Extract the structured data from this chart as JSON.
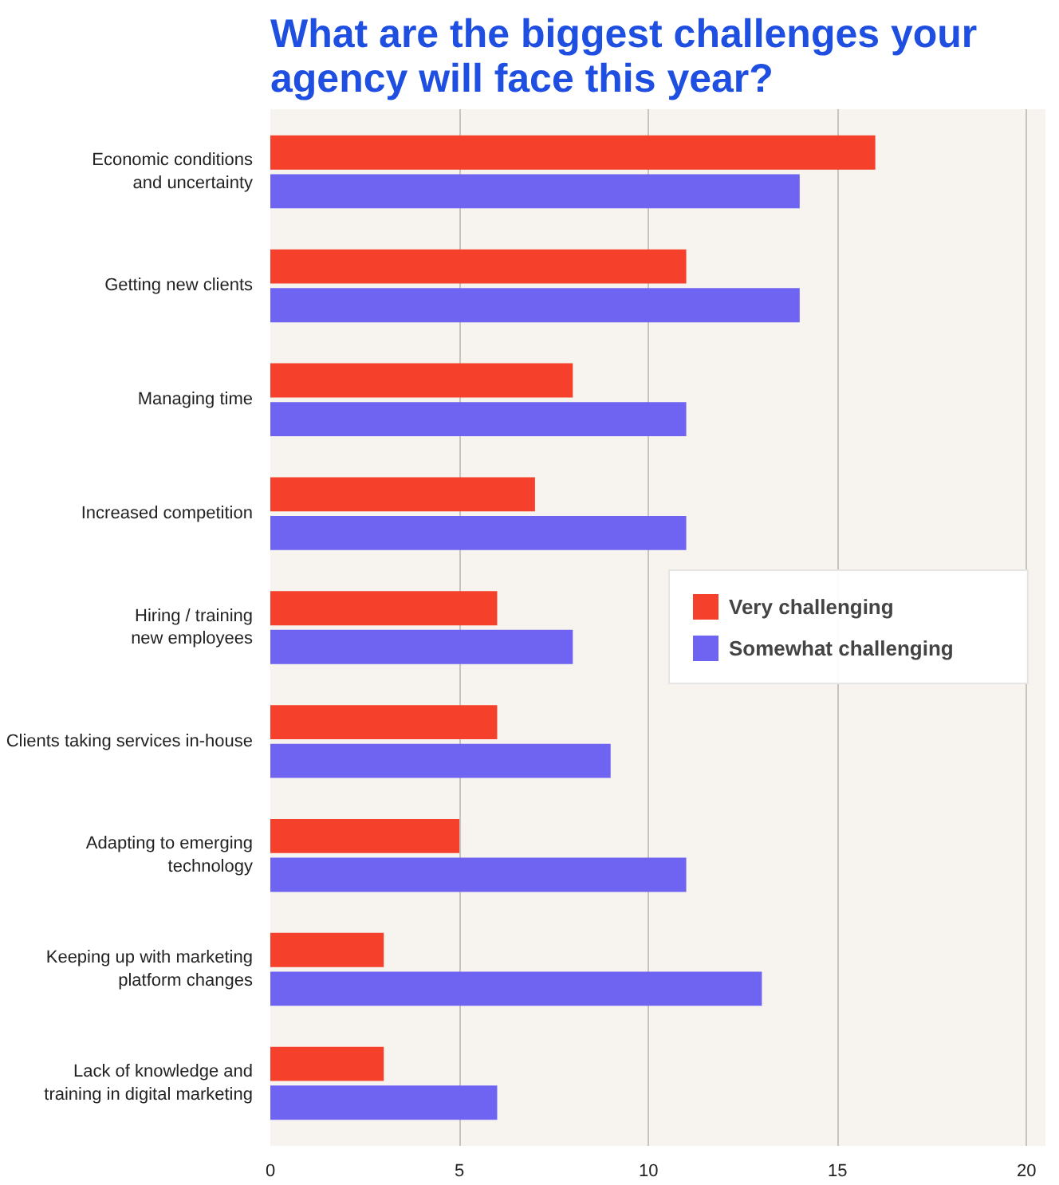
{
  "chart_data": {
    "type": "bar",
    "orientation": "horizontal",
    "title": "What are the biggest challenges your\nagency will face this year?",
    "categories": [
      "Economic conditions\nand uncertainty",
      "Getting new clients",
      "Managing time",
      "Increased competition",
      "Hiring / training\nnew employees",
      "Clients taking services in-house",
      "Adapting to emerging\ntechnology",
      "Keeping up with marketing\nplatform changes",
      "Lack of knowledge and\ntraining in digital marketing"
    ],
    "series": [
      {
        "name": "Very challenging",
        "color": "#f5402c",
        "values": [
          16,
          11,
          8,
          7,
          6,
          6,
          5,
          3,
          3
        ]
      },
      {
        "name": "Somewhat challenging",
        "color": "#6f63f2",
        "values": [
          14,
          14,
          11,
          11,
          8,
          9,
          11,
          13,
          6
        ]
      }
    ],
    "xlim": [
      0,
      20.5
    ],
    "xticks": [
      0,
      5,
      10,
      15,
      20
    ],
    "grid": "x",
    "legend": "right"
  }
}
